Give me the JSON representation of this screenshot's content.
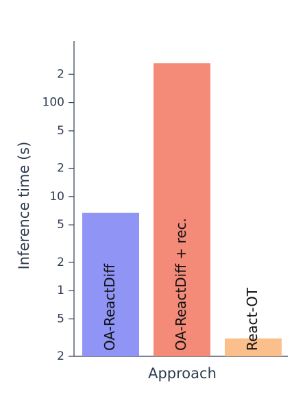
{
  "chart_data": {
    "type": "bar",
    "log_scale": true,
    "ylabel": "Inference time (s)",
    "xlabel": "Approach",
    "categories": [
      "OA-ReactDiff",
      "OA-ReactDiff + rec.",
      "React-OT"
    ],
    "values": [
      6.7,
      262,
      0.31
    ],
    "colors": [
      "#8f94f5",
      "#f48a78",
      "#fbbf8c"
    ],
    "ylim": [
      0.2,
      450
    ],
    "yticks": [
      {
        "value": 0.2,
        "label": "2"
      },
      {
        "value": 0.5,
        "label": "5"
      },
      1,
      2,
      5,
      10,
      {
        "value": 20,
        "label": "2"
      },
      {
        "value": 50,
        "label": "5"
      },
      100,
      {
        "value": 200,
        "label": "2"
      }
    ]
  }
}
